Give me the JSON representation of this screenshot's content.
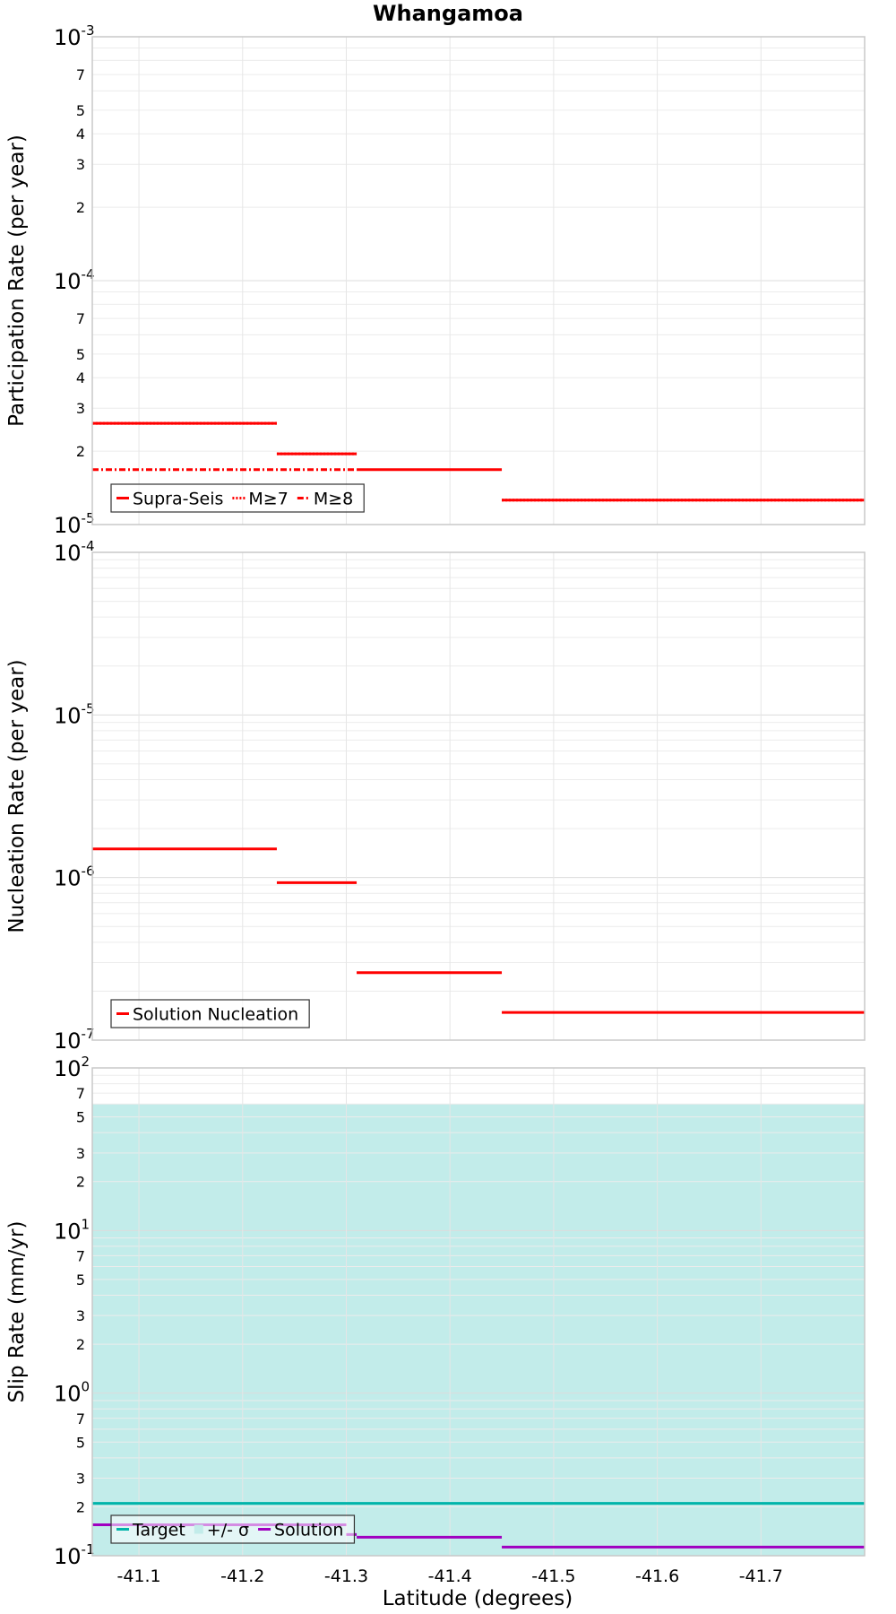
{
  "chart_data": {
    "type": "line",
    "title": "Whangamoa",
    "xlabel": "Latitude (degrees)",
    "xlim": [
      -41.055,
      -41.8
    ],
    "x_ticks": [
      -41.1,
      -41.2,
      -41.3,
      -41.4,
      -41.5,
      -41.6,
      -41.7
    ],
    "x_tick_labels": [
      "-41.1",
      "-41.2",
      "-41.3",
      "-41.4",
      "-41.5",
      "-41.6",
      "-41.7"
    ],
    "grid": true,
    "panels": [
      {
        "ylabel": "Participation Rate (per year)",
        "yscale": "log",
        "ylim": [
          1e-05,
          0.001
        ],
        "legend_position": "bottom-left",
        "series": [
          {
            "name": "Supra-Seis",
            "color": "#ff0000",
            "style": "solid",
            "segments": [
              {
                "x": [
                  -41.055,
                  -41.233
                ],
                "y": 2.6e-05
              },
              {
                "x": [
                  -41.233,
                  -41.31
                ],
                "y": 1.95e-05
              },
              {
                "x": [
                  -41.31,
                  -41.45
                ],
                "y": 1.68e-05
              },
              {
                "x": [
                  -41.45,
                  -41.8
                ],
                "y": 1.26e-05
              }
            ]
          },
          {
            "name": "M≥7",
            "color": "#ff0000",
            "style": "dotted",
            "segments": [
              {
                "x": [
                  -41.055,
                  -41.233
                ],
                "y": 2.6e-05
              },
              {
                "x": [
                  -41.233,
                  -41.31
                ],
                "y": 1.95e-05
              },
              {
                "x": [
                  -41.45,
                  -41.8
                ],
                "y": 1.26e-05
              }
            ]
          },
          {
            "name": "M≥8",
            "color": "#ff0000",
            "style": "dashdot",
            "segments": [
              {
                "x": [
                  -41.055,
                  -41.31
                ],
                "y": 1.68e-05
              }
            ]
          }
        ]
      },
      {
        "ylabel": "Nucleation Rate (per year)",
        "yscale": "log",
        "ylim": [
          1e-07,
          0.0001
        ],
        "legend_position": "bottom-left",
        "series": [
          {
            "name": "Solution Nucleation",
            "color": "#ff0000",
            "style": "solid",
            "segments": [
              {
                "x": [
                  -41.055,
                  -41.233
                ],
                "y": 1.5e-06
              },
              {
                "x": [
                  -41.233,
                  -41.31
                ],
                "y": 9.3e-07
              },
              {
                "x": [
                  -41.31,
                  -41.45
                ],
                "y": 2.6e-07
              },
              {
                "x": [
                  -41.45,
                  -41.8
                ],
                "y": 1.48e-07
              }
            ]
          }
        ]
      },
      {
        "ylabel": "Slip Rate (mm/yr)",
        "yscale": "log",
        "ylim": [
          0.1,
          100
        ],
        "legend_position": "bottom-left",
        "series": [
          {
            "name": "Target",
            "color": "#00b4aa",
            "style": "solid",
            "segments": [
              {
                "x": [
                  -41.055,
                  -41.8
                ],
                "y": 0.21
              }
            ]
          },
          {
            "name": "+/- σ",
            "color": "#c2ecea",
            "style": "band",
            "band": {
              "x": [
                -41.055,
                -41.8
              ],
              "low": 0.1,
              "high": 60
            }
          },
          {
            "name": "Solution",
            "color": "#a000c0",
            "style": "solid",
            "segments": [
              {
                "x": [
                  -41.055,
                  -41.3
                ],
                "y": 0.155
              },
              {
                "x": [
                  -41.3,
                  -41.31
                ],
                "y": 0.135
              },
              {
                "x": [
                  -41.31,
                  -41.45
                ],
                "y": 0.13
              },
              {
                "x": [
                  -41.45,
                  -41.8
                ],
                "y": 0.113
              }
            ]
          }
        ]
      }
    ]
  }
}
